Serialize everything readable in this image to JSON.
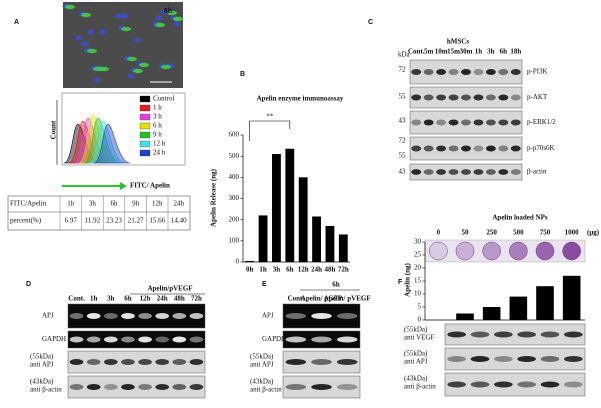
{
  "panels": {
    "a": {
      "letter": "A",
      "image_label": "6h",
      "y_label": "Count",
      "x_label": "FITC/ Apelin",
      "legend": [
        {
          "name": "Control",
          "color": "#000000"
        },
        {
          "name": "1 h",
          "color": "#e41a1c"
        },
        {
          "name": "3 h",
          "color": "#e040e0"
        },
        {
          "name": "6 h",
          "color": "#e8e000"
        },
        {
          "name": "9 h",
          "color": "#22c022"
        },
        {
          "name": "12 h",
          "color": "#40e0e0"
        },
        {
          "name": "24 h",
          "color": "#1f3fd0"
        }
      ],
      "table": {
        "header": [
          "FITC/Apelin",
          "1h",
          "3h",
          "6h",
          "9h",
          "12h",
          "24h"
        ],
        "rows": [
          [
            "percent(%)",
            "6.97",
            "11.92",
            "23.23",
            "21.27",
            "15.66",
            "14.40"
          ]
        ]
      }
    },
    "c": {
      "letter": "C",
      "group": "hMSCs",
      "kda_label": "kDa",
      "lanes": [
        "Cont.",
        "5m",
        "10m",
        "15m",
        "30m",
        "1h",
        "3h",
        "6h",
        "18h"
      ],
      "rows": [
        "p-PI3K",
        "p-AKT",
        "p-ERK1/2",
        "p-p70s6K",
        "β-actin"
      ],
      "markers": [
        "72",
        "55",
        "43",
        "72",
        "55",
        "43"
      ]
    },
    "d": {
      "letter": "D",
      "group": "Apelin/pVEGF",
      "lanes": [
        "Cont.",
        "1h",
        "3h",
        "6h",
        "12h",
        "24h",
        "48h",
        "72h"
      ],
      "gels": [
        "APJ",
        "GAPDH"
      ],
      "blots": [
        {
          "size": "(55kDa)",
          "target": "anti APJ"
        },
        {
          "size": "(43kDa)",
          "target": "anti β-actin"
        }
      ]
    },
    "e": {
      "letter": "E",
      "group": "6h",
      "lanes": [
        "Cont.",
        "Apelin/ pGFP",
        "Apelin/ pVEGF"
      ],
      "gels": [
        "APJ",
        "GAPDH"
      ],
      "blots": [
        {
          "size": "(55kDa)",
          "target": "anti APJ"
        },
        {
          "size": "(43kDa)",
          "target": "anti β-actin"
        }
      ]
    },
    "f": {
      "blots": [
        {
          "size": "(55kDa)",
          "target": "anti VEGF"
        },
        {
          "size": "(55kDa)",
          "target": "anti APJ"
        },
        {
          "size": "(43kDa)",
          "target": "anti β-actin"
        }
      ]
    }
  },
  "chart_data": [
    {
      "type": "bar",
      "panel_label": "B",
      "title": "Apelin enzyme immunoassay",
      "y_label": "Apelin Release (ng)",
      "categories": [
        "0h",
        "1h",
        "3h",
        "6h",
        "12h",
        "24h",
        "48h",
        "72h"
      ],
      "values": [
        5,
        220,
        510,
        535,
        400,
        215,
        170,
        130
      ],
      "color": "#000000",
      "ylim": [
        0,
        600
      ],
      "yticks": [
        0,
        100,
        200,
        300,
        400,
        500,
        600
      ],
      "annotation": "**"
    },
    {
      "type": "bar",
      "panel_label": "F",
      "title": "Apelin loaded NPs",
      "y_label": "Apelin (ng)",
      "x_unit": "(μg)",
      "categories": [
        "0",
        "50",
        "250",
        "500",
        "750",
        "1000"
      ],
      "values": [
        0,
        2.5,
        5,
        9,
        13,
        17
      ],
      "color": "#000000",
      "ylim": [
        0,
        30
      ],
      "yticks": [
        0,
        5,
        10,
        15,
        20,
        25,
        30
      ]
    }
  ]
}
